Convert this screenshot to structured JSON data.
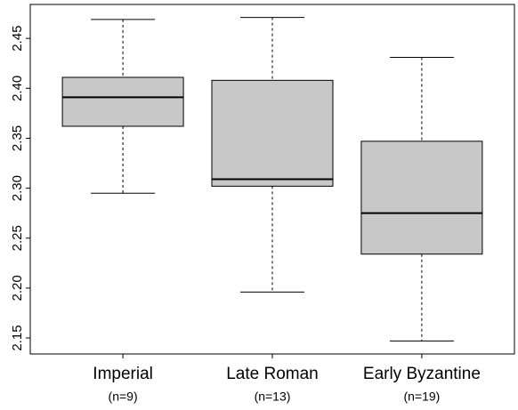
{
  "chart_data": {
    "type": "box",
    "categories": [
      "Imperial",
      "Late Roman",
      "Early Byzantine"
    ],
    "sublabels": [
      "(n=9)",
      "(n=13)",
      "(n=19)"
    ],
    "boxes": [
      {
        "min": 2.295,
        "q1": 2.362,
        "median": 2.391,
        "q3": 2.411,
        "max": 2.469
      },
      {
        "min": 2.196,
        "q1": 2.302,
        "median": 2.309,
        "q3": 2.408,
        "max": 2.471
      },
      {
        "min": 2.147,
        "q1": 2.234,
        "median": 2.275,
        "q3": 2.347,
        "max": 2.431
      }
    ],
    "color": "#c8c8c8",
    "ylim": [
      2.134,
      2.484
    ],
    "yticks": [
      2.15,
      {
        "value": 2.2,
        "label": "2.20"
      },
      2.25,
      {
        "value": 2.3,
        "label": "2.30"
      },
      2.35,
      {
        "value": 2.4,
        "label": "2.40"
      },
      2.45
    ]
  }
}
